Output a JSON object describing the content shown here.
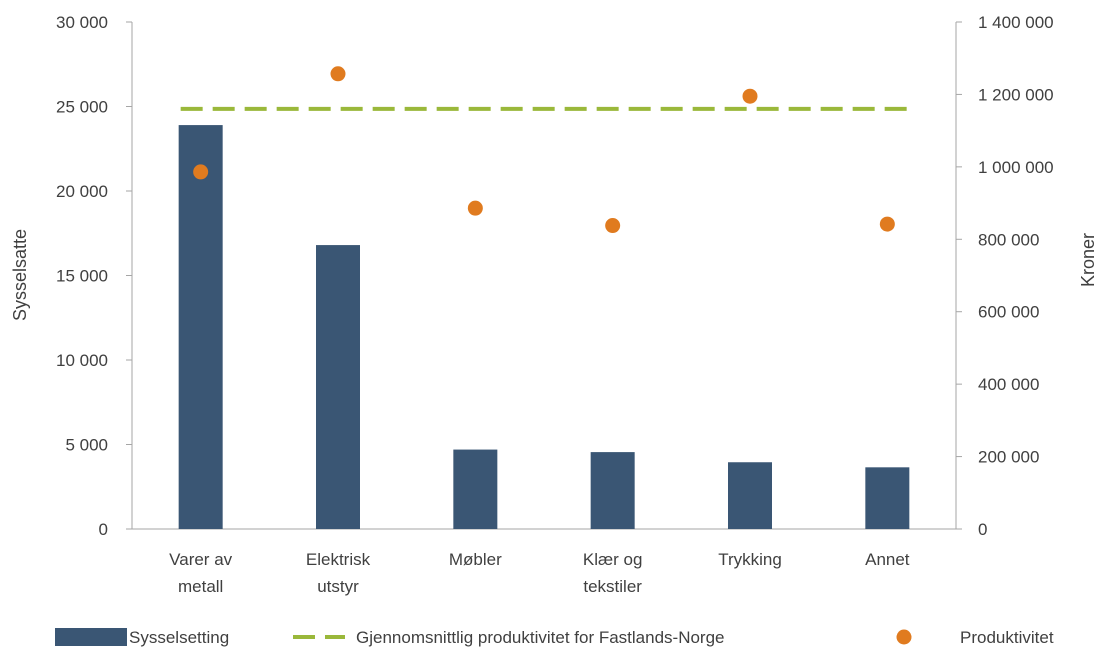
{
  "chart_data": {
    "type": "bar",
    "categories": [
      [
        "Varer av",
        "metall"
      ],
      [
        "Elektrisk",
        "utstyr"
      ],
      [
        "Møbler"
      ],
      [
        "Klær og",
        "tekstiler"
      ],
      [
        "Trykking"
      ],
      [
        "Annet"
      ]
    ],
    "series": [
      {
        "name": "Sysselsetting",
        "type": "bar",
        "axis": "left",
        "color": "#3a5674",
        "values": [
          23900,
          16800,
          4700,
          4550,
          3950,
          3650
        ]
      },
      {
        "name": "Gjennomsnittlig produktivitet for Fastlands-Norge",
        "type": "line",
        "style": "dashed",
        "axis": "right",
        "color": "#9ab83a",
        "values": [
          1160000,
          1160000,
          1160000,
          1160000,
          1160000,
          1160000
        ]
      },
      {
        "name": "Produktivitet",
        "type": "scatter",
        "axis": "right",
        "color": "#e07b1f",
        "values": [
          986000,
          1257000,
          886000,
          838000,
          1195000,
          842000
        ]
      }
    ],
    "ylabel": "Sysselsatte",
    "y2label": "Kroner",
    "ylim": [
      0,
      30000
    ],
    "y2lim": [
      0,
      1400000
    ],
    "yticks": [
      "0",
      "5 000",
      "10 000",
      "15 000",
      "20 000",
      "25 000",
      "30 000"
    ],
    "y2ticks": [
      "0",
      "200 000",
      "400 000",
      "600 000",
      "800 000",
      "1 000 000",
      "1 200 000",
      "1 400 000"
    ],
    "grid": false,
    "legend_position": "bottom"
  }
}
